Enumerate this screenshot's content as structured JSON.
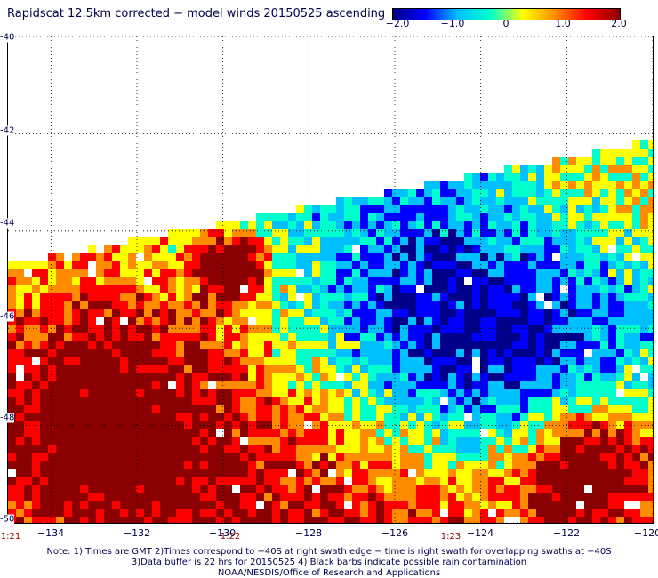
{
  "title": "Rapidscat 12.5km corrected − model winds 20150525 ascending",
  "colorbar": {
    "ticks": [
      "−2.0",
      "−1.0",
      "0",
      "1.0",
      "2.0"
    ],
    "tick_values": [
      -2.0,
      -1.0,
      0,
      1.0,
      2.0
    ],
    "colors": [
      "#00008b",
      "#0000ff",
      "#00c0ff",
      "#00ffcc",
      "#ffff00",
      "#ff8c00",
      "#ff0000",
      "#8b0000"
    ]
  },
  "map": {
    "lon_range": [
      -135,
      -120
    ],
    "lat_range": [
      -40,
      -50
    ],
    "lat_ticks": [
      "-40",
      "-42",
      "-44",
      "-46",
      "-48",
      "-50"
    ],
    "lat_values": [
      -40,
      -42,
      -44,
      -46,
      -48,
      -50
    ],
    "lon_ticks": [
      "−134",
      "−132",
      "−130",
      "−128",
      "−126",
      "−124",
      "−122",
      "−120"
    ],
    "lon_values": [
      -134,
      -132,
      -130,
      -128,
      -126,
      -124,
      -122,
      -120
    ],
    "time_labels": [
      "1:21",
      "1:22",
      "1:23"
    ],
    "time_lons": [
      -135,
      -130,
      -125
    ],
    "gridlines": true
  },
  "notes": {
    "line1": "Note: 1) Times are GMT 2)Times correspond to −40S at right swath edge − time is right swath for overlapping swaths at −40S",
    "line2": "3)Data buffer is 22 hrs for 20150525 4) Black barbs indicate possible rain contamination",
    "line3": "NOAA/NESDIS/Office of Research and Applications"
  }
}
